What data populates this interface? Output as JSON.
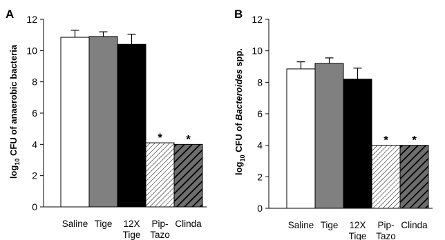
{
  "chart_data": [
    {
      "type": "bar",
      "panel": "A",
      "ylabel": {
        "pre": "log",
        "sub": "10",
        "post": " CFU of anaerobic bacteria",
        "italic": "",
        "tail": ""
      },
      "ylim": [
        0,
        12
      ],
      "yticks": [
        "0",
        "2",
        "4",
        "6",
        "8",
        "10",
        "12"
      ],
      "categories": [
        [
          "Saline"
        ],
        [
          "Tige"
        ],
        [
          "12X",
          "Tige"
        ],
        [
          "Pip-",
          "Tazo"
        ],
        [
          "Clinda"
        ]
      ],
      "values": [
        10.85,
        10.9,
        10.4,
        4.1,
        4.0
      ],
      "errors": [
        0.45,
        0.3,
        0.65,
        0,
        0
      ],
      "significant": [
        "",
        "",
        "",
        "*",
        "*"
      ],
      "fills": [
        "white",
        "gray",
        "black",
        "light-hatch",
        "dark-hatch"
      ]
    },
    {
      "type": "bar",
      "panel": "B",
      "ylabel": {
        "pre": "log",
        "sub": "10",
        "post": " CFU of ",
        "italic": "Bacteroides",
        "tail": " spp."
      },
      "ylim": [
        0,
        12
      ],
      "yticks": [
        "0",
        "2",
        "4",
        "6",
        "8",
        "10",
        "12"
      ],
      "categories": [
        [
          "Saline"
        ],
        [
          "Tige"
        ],
        [
          "12X",
          "Tige"
        ],
        [
          "Pip-",
          "Tazo"
        ],
        [
          "Clinda"
        ]
      ],
      "values": [
        8.85,
        9.2,
        8.2,
        4.0,
        4.0
      ],
      "errors": [
        0.45,
        0.35,
        0.7,
        0,
        0
      ],
      "significant": [
        "",
        "",
        "",
        "*",
        "*"
      ],
      "fills": [
        "white",
        "gray",
        "black",
        "light-hatch",
        "dark-hatch"
      ]
    }
  ],
  "colors": {
    "gray": "#808080",
    "black": "#000000",
    "white": "#ffffff",
    "dark_hatch_bg": "#6e6e6e"
  }
}
